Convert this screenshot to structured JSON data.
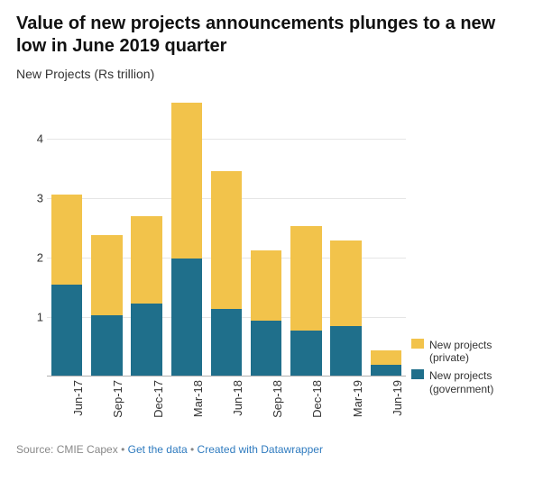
{
  "title": "Value of new projects announcements plunges to a new low in June 2019 quarter",
  "subtitle": "New Projects (Rs trillion)",
  "chart": {
    "type": "stacked_bar",
    "categories": [
      "Jun-17",
      "Sep-17",
      "Dec-17",
      "Mar-18",
      "Jun-18",
      "Sep-18",
      "Dec-18",
      "Mar-19",
      "Jun-19"
    ],
    "series": [
      {
        "name": "New projects (government)",
        "color": "#1f6f8b",
        "values": [
          1.53,
          1.02,
          1.21,
          1.97,
          1.12,
          0.92,
          0.76,
          0.83,
          0.18
        ]
      },
      {
        "name": "New projects (private)",
        "color": "#f2c34b",
        "values": [
          1.52,
          1.35,
          1.48,
          2.63,
          2.32,
          1.19,
          1.76,
          1.44,
          0.25
        ]
      }
    ],
    "ylim": [
      0,
      4.7
    ],
    "yticks": [
      1,
      2,
      3,
      4
    ],
    "grid_color": "#e5e5e5",
    "baseline_color": "#b0b0b0",
    "background_color": "#ffffff",
    "bar_width_ratio": 0.78,
    "title_fontsize": 20,
    "subtitle_fontsize": 14,
    "tick_fontsize": 13,
    "legend_fontsize": 12,
    "footer_fontsize": 12
  },
  "legend": {
    "series0": "New projects (private)",
    "series1": "New projects (government)"
  },
  "footer": {
    "source_label": "Source: CMIE Capex",
    "link1": "Get the data",
    "link2": "Created with Datawrapper"
  }
}
